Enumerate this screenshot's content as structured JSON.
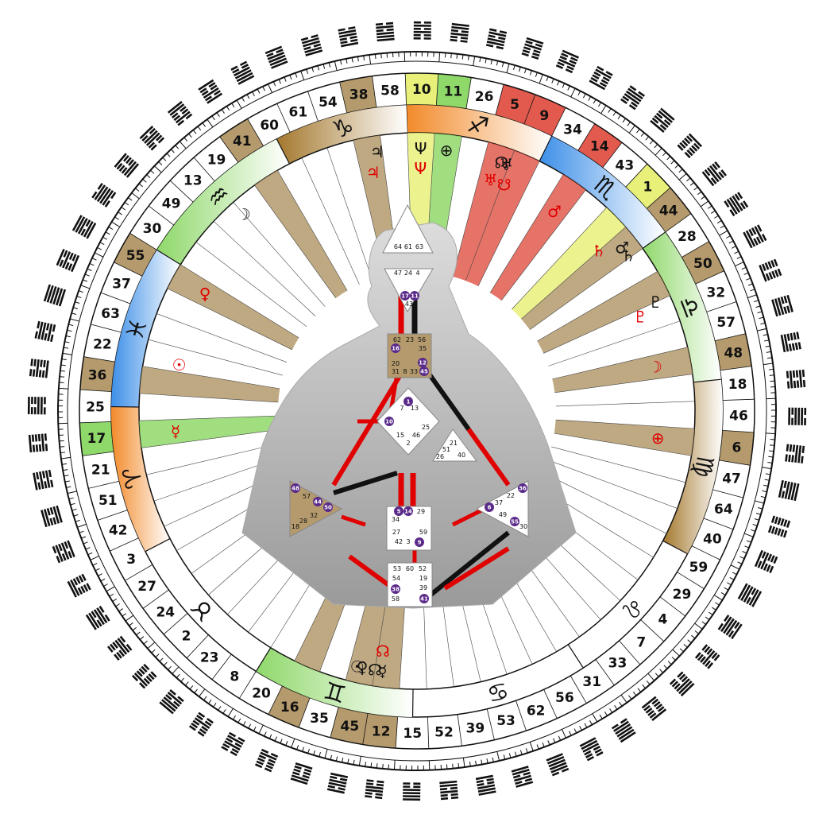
{
  "colors": {
    "activated_gold": "#b49a6c",
    "activated_red": "#e25a4e",
    "activated_green": "#8fd86a",
    "activated_yellow": "#e8f07a",
    "sign_orange": "#f28a2a",
    "sign_blue": "#3d8fe8",
    "sign_green": "#4cc238",
    "sign_tan": "#a4782e",
    "ring_line": "#111111",
    "defined_center": "#b49a6c",
    "undefined_center": "#ffffff",
    "design_red": "#e00000",
    "personality_black": "#111111",
    "dot_purple": "#5a2a8a"
  },
  "gates_ring": [
    {
      "gate": "10",
      "color": "yellow"
    },
    {
      "gate": "11",
      "color": "green"
    },
    {
      "gate": "26",
      "color": "none"
    },
    {
      "gate": "5",
      "color": "red"
    },
    {
      "gate": "9",
      "color": "red"
    },
    {
      "gate": "34",
      "color": "none"
    },
    {
      "gate": "14",
      "color": "red"
    },
    {
      "gate": "43",
      "color": "none"
    },
    {
      "gate": "1",
      "color": "yellow"
    },
    {
      "gate": "44",
      "color": "gold"
    },
    {
      "gate": "28",
      "color": "none"
    },
    {
      "gate": "50",
      "color": "gold"
    },
    {
      "gate": "32",
      "color": "none"
    },
    {
      "gate": "57",
      "color": "none"
    },
    {
      "gate": "48",
      "color": "gold"
    },
    {
      "gate": "18",
      "color": "none"
    },
    {
      "gate": "46",
      "color": "none"
    },
    {
      "gate": "6",
      "color": "gold"
    },
    {
      "gate": "47",
      "color": "none"
    },
    {
      "gate": "64",
      "color": "none"
    },
    {
      "gate": "40",
      "color": "none"
    },
    {
      "gate": "59",
      "color": "none"
    },
    {
      "gate": "29",
      "color": "none"
    },
    {
      "gate": "4",
      "color": "none"
    },
    {
      "gate": "7",
      "color": "none"
    },
    {
      "gate": "33",
      "color": "none"
    },
    {
      "gate": "31",
      "color": "none"
    },
    {
      "gate": "56",
      "color": "none"
    },
    {
      "gate": "62",
      "color": "none"
    },
    {
      "gate": "53",
      "color": "none"
    },
    {
      "gate": "39",
      "color": "none"
    },
    {
      "gate": "52",
      "color": "none"
    },
    {
      "gate": "15",
      "color": "none"
    },
    {
      "gate": "12",
      "color": "gold"
    },
    {
      "gate": "45",
      "color": "gold"
    },
    {
      "gate": "35",
      "color": "none"
    },
    {
      "gate": "16",
      "color": "gold"
    },
    {
      "gate": "20",
      "color": "none"
    },
    {
      "gate": "8",
      "color": "none"
    },
    {
      "gate": "23",
      "color": "none"
    },
    {
      "gate": "2",
      "color": "none"
    },
    {
      "gate": "24",
      "color": "none"
    },
    {
      "gate": "27",
      "color": "none"
    },
    {
      "gate": "3",
      "color": "none"
    },
    {
      "gate": "42",
      "color": "none"
    },
    {
      "gate": "51",
      "color": "none"
    },
    {
      "gate": "21",
      "color": "none"
    },
    {
      "gate": "17",
      "color": "green"
    },
    {
      "gate": "25",
      "color": "none"
    },
    {
      "gate": "36",
      "color": "gold"
    },
    {
      "gate": "22",
      "color": "none"
    },
    {
      "gate": "63",
      "color": "none"
    },
    {
      "gate": "37",
      "color": "none"
    },
    {
      "gate": "55",
      "color": "gold"
    },
    {
      "gate": "30",
      "color": "none"
    },
    {
      "gate": "49",
      "color": "none"
    },
    {
      "gate": "13",
      "color": "none"
    },
    {
      "gate": "19",
      "color": "none"
    },
    {
      "gate": "41",
      "color": "gold"
    },
    {
      "gate": "60",
      "color": "none"
    },
    {
      "gate": "61",
      "color": "none"
    },
    {
      "gate": "54",
      "color": "none"
    },
    {
      "gate": "38",
      "color": "gold"
    },
    {
      "gate": "58",
      "color": "none"
    }
  ],
  "signs": [
    {
      "glyph": "♐",
      "color": "orange",
      "span": [
        0,
        5
      ]
    },
    {
      "glyph": "♏",
      "color": "blue",
      "span": [
        5,
        5
      ]
    },
    {
      "glyph": "♎",
      "color": "green",
      "span": [
        10,
        5.3
      ]
    },
    {
      "glyph": "♍",
      "color": "tan",
      "span": [
        15.3,
        6
      ]
    },
    {
      "glyph": "♌",
      "color": "none",
      "span": [
        21.3,
        5.2
      ]
    },
    {
      "glyph": "♋",
      "color": "none",
      "span": [
        26.5,
        6
      ]
    },
    {
      "glyph": "♊",
      "color": "green",
      "span": [
        32.5,
        5.5
      ]
    },
    {
      "glyph": "♉",
      "color": "none",
      "span": [
        38,
        5.5
      ]
    },
    {
      "glyph": "♈",
      "color": "orange",
      "span": [
        43.5,
        5
      ]
    },
    {
      "glyph": "♓",
      "color": "blue",
      "span": [
        48.5,
        5.5
      ]
    },
    {
      "glyph": "♒",
      "color": "green",
      "span": [
        54,
        5.5
      ]
    },
    {
      "glyph": "♑",
      "color": "tan",
      "span": [
        59.5,
        4.5
      ]
    }
  ],
  "planets": [
    {
      "glyph": "Ψ",
      "pos": 0,
      "r": "design"
    },
    {
      "glyph": "Ψ",
      "pos": 0,
      "r": "personality"
    },
    {
      "glyph": "⊕",
      "pos": 1,
      "r": "personality"
    },
    {
      "glyph": "♅",
      "pos": 3,
      "r": "design"
    },
    {
      "glyph": "☊",
      "pos": 3.2,
      "r": "personality"
    },
    {
      "glyph": "♅",
      "pos": 3.4,
      "r": "personality"
    },
    {
      "glyph": "☋",
      "pos": 3.6,
      "r": "design"
    },
    {
      "glyph": "♂",
      "pos": 6,
      "r": "design"
    },
    {
      "glyph": "♄",
      "pos": 8.5,
      "r": "design"
    },
    {
      "glyph": "♂",
      "pos": 9,
      "r": "personality"
    },
    {
      "glyph": "♄",
      "pos": 9.4,
      "r": "personality"
    },
    {
      "glyph": "♇",
      "pos": 11.5,
      "r": "personality"
    },
    {
      "glyph": "♇",
      "pos": 11.8,
      "r": "design"
    },
    {
      "glyph": "☽",
      "pos": 14,
      "r": "design"
    },
    {
      "glyph": "⊕",
      "pos": 17,
      "r": "design"
    },
    {
      "glyph": "☊",
      "pos": 33.3,
      "r": "design"
    },
    {
      "glyph": "☊",
      "pos": 33.5,
      "r": "personality"
    },
    {
      "glyph": "☿",
      "pos": 33.2,
      "r": "personality"
    },
    {
      "glyph": "♀",
      "pos": 34,
      "r": "personality"
    },
    {
      "glyph": "☉",
      "pos": 34.2,
      "r": "personality"
    },
    {
      "glyph": "☿",
      "pos": 47,
      "r": "design"
    },
    {
      "glyph": "☉",
      "pos": 49.8,
      "r": "design"
    },
    {
      "glyph": "♀",
      "pos": 53,
      "r": "design"
    },
    {
      "glyph": "☽",
      "pos": 56.5,
      "r": "personality"
    },
    {
      "glyph": "♃",
      "pos": 62,
      "r": "design"
    },
    {
      "glyph": "♃",
      "pos": 62.3,
      "r": "personality"
    }
  ],
  "bodygraph": {
    "head": [
      "64",
      "61",
      "63"
    ],
    "ajna": [
      "47",
      "24",
      "4",
      "17",
      "11",
      "43"
    ],
    "throat": [
      "62",
      "23",
      "56",
      "16",
      "35",
      "20",
      "12",
      "31",
      "8",
      "33",
      "45"
    ],
    "g": [
      "1",
      "7",
      "13",
      "10",
      "25",
      "15",
      "46",
      "2"
    ],
    "heart": [
      "21",
      "51",
      "26",
      "40"
    ],
    "spleen": [
      "48",
      "57",
      "44",
      "50",
      "32",
      "28",
      "18"
    ],
    "sacral": [
      "5",
      "14",
      "29",
      "34",
      "27",
      "59",
      "42",
      "3",
      "9"
    ],
    "solar": [
      "36",
      "22",
      "37",
      "6",
      "49",
      "55",
      "30"
    ],
    "root": [
      "53",
      "60",
      "52",
      "54",
      "19",
      "38",
      "39",
      "58",
      "41"
    ]
  }
}
